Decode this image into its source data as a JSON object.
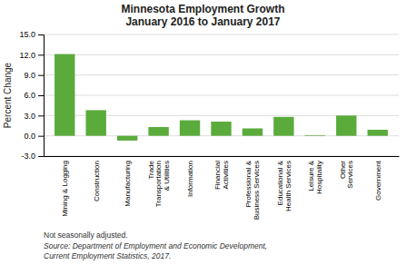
{
  "chart_data": {
    "type": "bar",
    "title": "Minnesota Employment Growth\nJanuary 2016 to January 2017",
    "categories": [
      "Mining & Logging",
      "Construction",
      "Manufacturing",
      "Trade\nTransportation\n& Utilities",
      "Information",
      "Financial\nActivities",
      "Professional &\nBusiness Services",
      "Educational &\nHealth Services",
      "Leisure &\nHospitality",
      "Other\nServices",
      "Government"
    ],
    "values": [
      12.1,
      3.8,
      -0.7,
      1.3,
      2.3,
      2.1,
      1.1,
      2.8,
      0.1,
      3.0,
      0.9
    ],
    "color": "#5aab3c",
    "ylabel": "Percent Change",
    "ylim": [
      -3.0,
      15.0
    ],
    "yticks": [
      {
        "value": -3.0,
        "label": "-3.0"
      },
      {
        "value": 0.0,
        "label": "0.0"
      },
      {
        "value": 3.0,
        "label": "3.0"
      },
      {
        "value": 6.0,
        "label": "6.0"
      },
      {
        "value": 9.0,
        "label": "9.0"
      },
      {
        "value": 12.0,
        "label": "12.0"
      },
      {
        "value": 15.0,
        "label": "15.0"
      }
    ],
    "grid": true,
    "annotations": [
      "Not seasonally adjusted.",
      "Source: Department of Employment and Economic Development,\nCurrent Employment Statistics, 2017."
    ]
  }
}
